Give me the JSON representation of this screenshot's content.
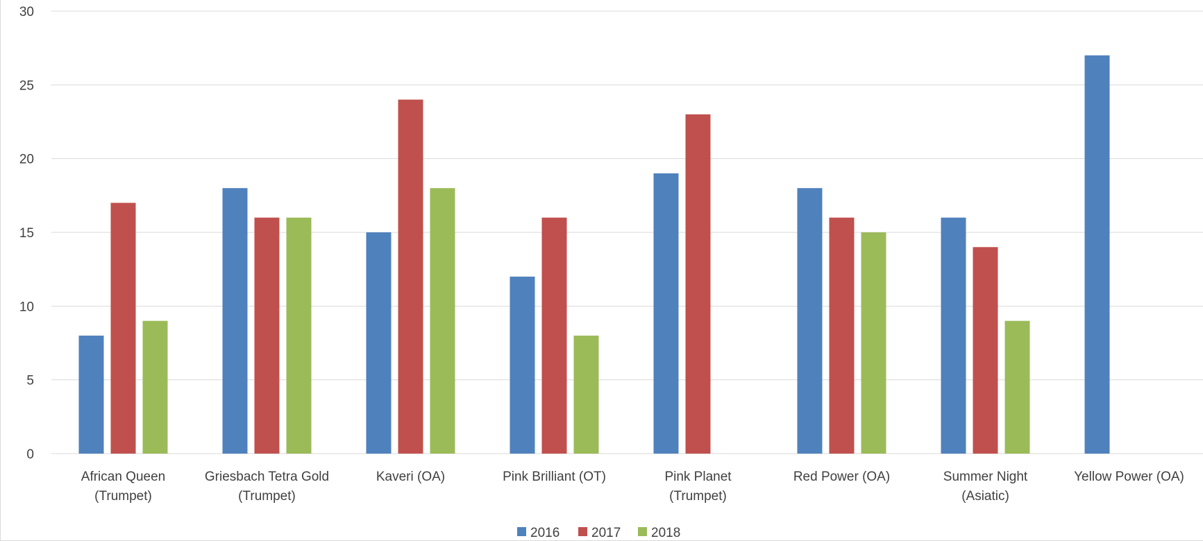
{
  "chart_data": {
    "type": "bar",
    "title": "",
    "xlabel": "",
    "ylabel": "",
    "ylim": [
      0,
      30
    ],
    "yticks": [
      0,
      5,
      10,
      15,
      20,
      25,
      30
    ],
    "grid": true,
    "legend_position": "bottom",
    "categories": [
      [
        "African Queen",
        "(Trumpet)"
      ],
      [
        "Griesbach Tetra Gold",
        "(Trumpet)"
      ],
      [
        "Kaveri (OA)"
      ],
      [
        "Pink Brilliant (OT)"
      ],
      [
        "Pink Planet",
        "(Trumpet)"
      ],
      [
        "Red Power (OA)"
      ],
      [
        "Summer Night",
        "(Asiatic)"
      ],
      [
        "Yellow Power (OA)"
      ]
    ],
    "series": [
      {
        "name": "2016",
        "color": "#4f81bd",
        "values": [
          8,
          18,
          15,
          12,
          19,
          18,
          16,
          27
        ]
      },
      {
        "name": "2017",
        "color": "#c0504d",
        "values": [
          17,
          16,
          24,
          16,
          23,
          16,
          14,
          null
        ]
      },
      {
        "name": "2018",
        "color": "#9bbb59",
        "values": [
          9,
          16,
          18,
          8,
          null,
          15,
          9,
          null
        ]
      }
    ]
  }
}
